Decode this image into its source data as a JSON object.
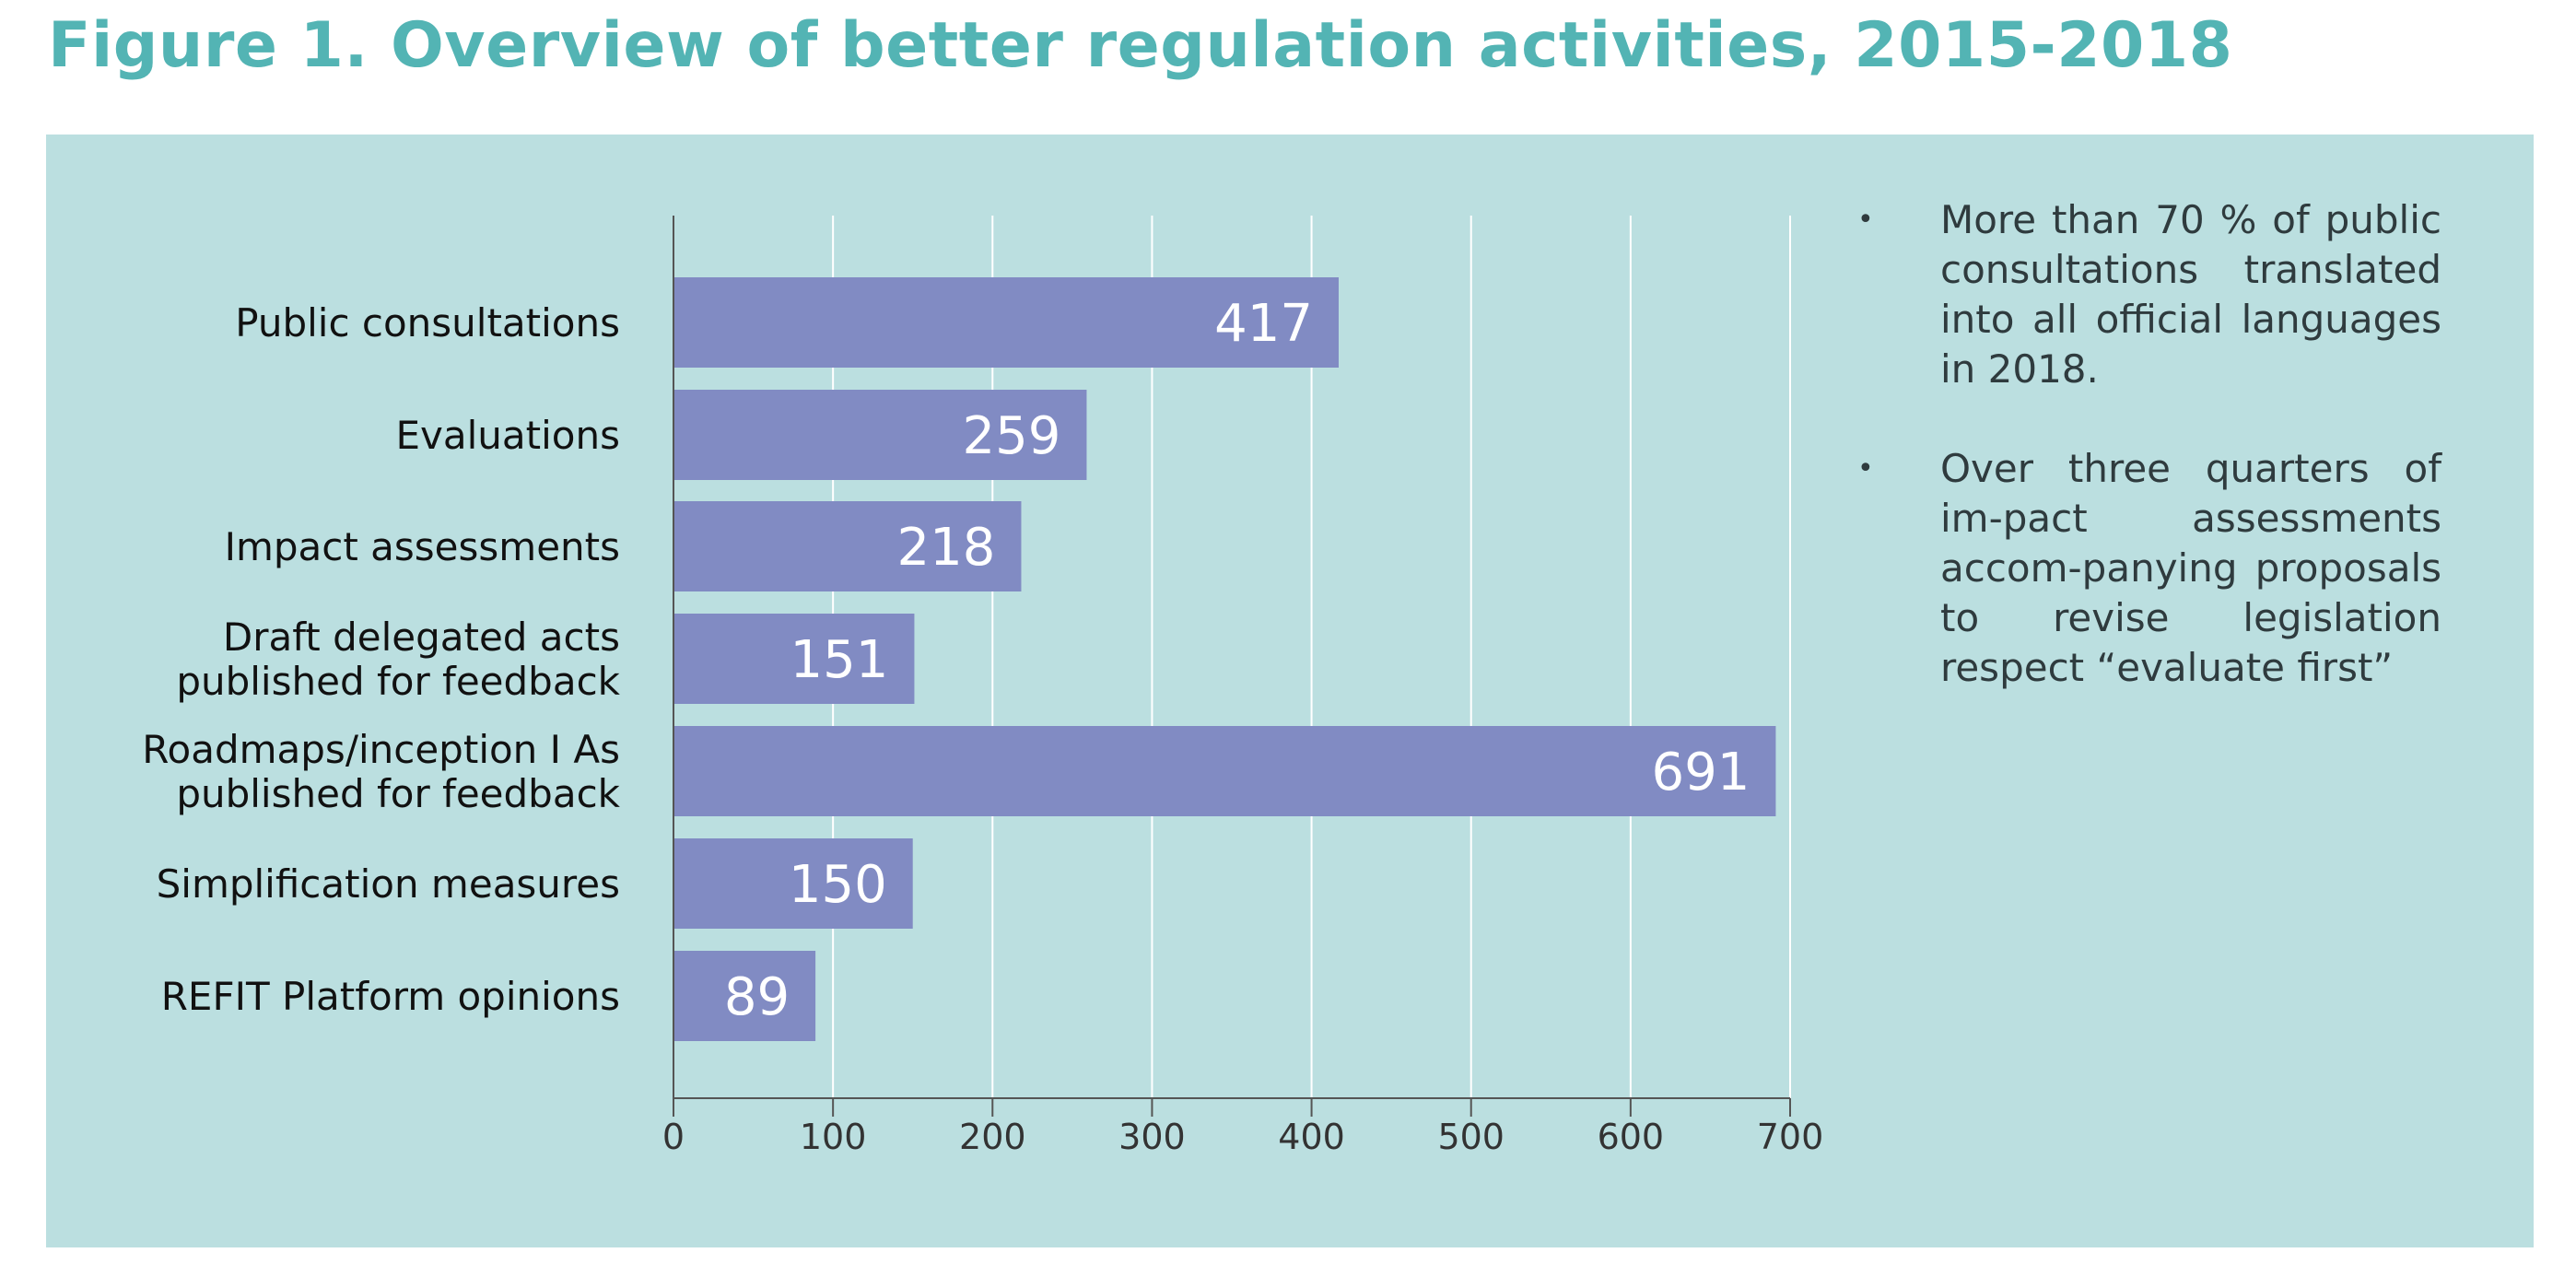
{
  "figure": {
    "title": "Figure 1. Overview of better regulation activities, 2015-2018"
  },
  "colors": {
    "title": "#53b4b4",
    "panel_background": "#bbdfe0",
    "bar": "#818bc3",
    "gridline": "#ffffff",
    "axis": "#555555"
  },
  "chart_data": {
    "type": "bar",
    "orientation": "horizontal",
    "title": "",
    "xlabel": "",
    "ylabel": "",
    "categories": [
      "Public consultations",
      "Evaluations",
      "Impact assessments",
      "Draft delegated acts published for feedback",
      "Roadmaps/inception I As published for feedback",
      "Simplification measures",
      "REFIT Platform opinions"
    ],
    "category_lines": [
      [
        "Public consultations"
      ],
      [
        "Evaluations"
      ],
      [
        "Impact assessments"
      ],
      [
        "Draft delegated acts",
        "published for feedback"
      ],
      [
        "Roadmaps/inception I As",
        "published for feedback"
      ],
      [
        "Simplification measures"
      ],
      [
        "REFIT Platform opinions"
      ]
    ],
    "values": [
      417,
      259,
      218,
      151,
      691,
      150,
      89
    ],
    "xlim": [
      0,
      700
    ],
    "xticks": [
      0,
      100,
      200,
      300,
      400,
      500,
      600,
      700
    ],
    "grid": true,
    "data_labels": true
  },
  "notes": [
    {
      "bullet": "•",
      "text": "More than 70 % of public consultations translated into all official languages in 2018."
    },
    {
      "bullet": "•",
      "text": "Over three quarters of im-pact assessments accom-panying proposals to revise legislation respect “evaluate first”"
    }
  ]
}
